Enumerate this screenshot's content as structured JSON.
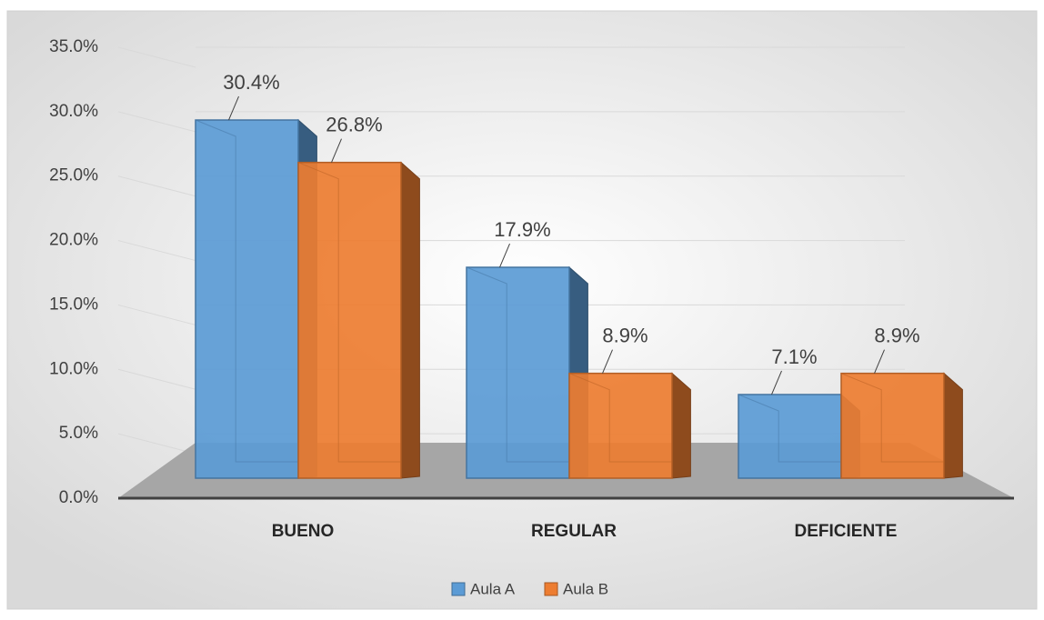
{
  "chart_data": {
    "type": "bar3d",
    "categories": [
      "BUENO",
      "REGULAR",
      "DEFICIENTE"
    ],
    "series": [
      {
        "name": "Aula A",
        "color": "#5b9bd5",
        "values": [
          30.4,
          17.9,
          7.1
        ],
        "value_labels": [
          "30.4%",
          "17.9%",
          "7.1%"
        ]
      },
      {
        "name": "Aula B",
        "color": "#ed7d31",
        "values": [
          26.8,
          8.9,
          8.9
        ],
        "value_labels": [
          "26.8%",
          "8.9%",
          "8.9%"
        ]
      }
    ],
    "ylim": [
      0,
      35
    ],
    "yticks": [
      {
        "value": 0,
        "label": "0.0%"
      },
      {
        "value": 5,
        "label": "5.0%"
      },
      {
        "value": 10,
        "label": "10.0%"
      },
      {
        "value": 15,
        "label": "15.0%"
      },
      {
        "value": 20,
        "label": "20.0%"
      },
      {
        "value": 25,
        "label": "25.0%"
      },
      {
        "value": 30,
        "label": "30.0%"
      },
      {
        "value": 35,
        "label": "35.0%"
      }
    ],
    "grid": true,
    "legend": "bottom"
  }
}
